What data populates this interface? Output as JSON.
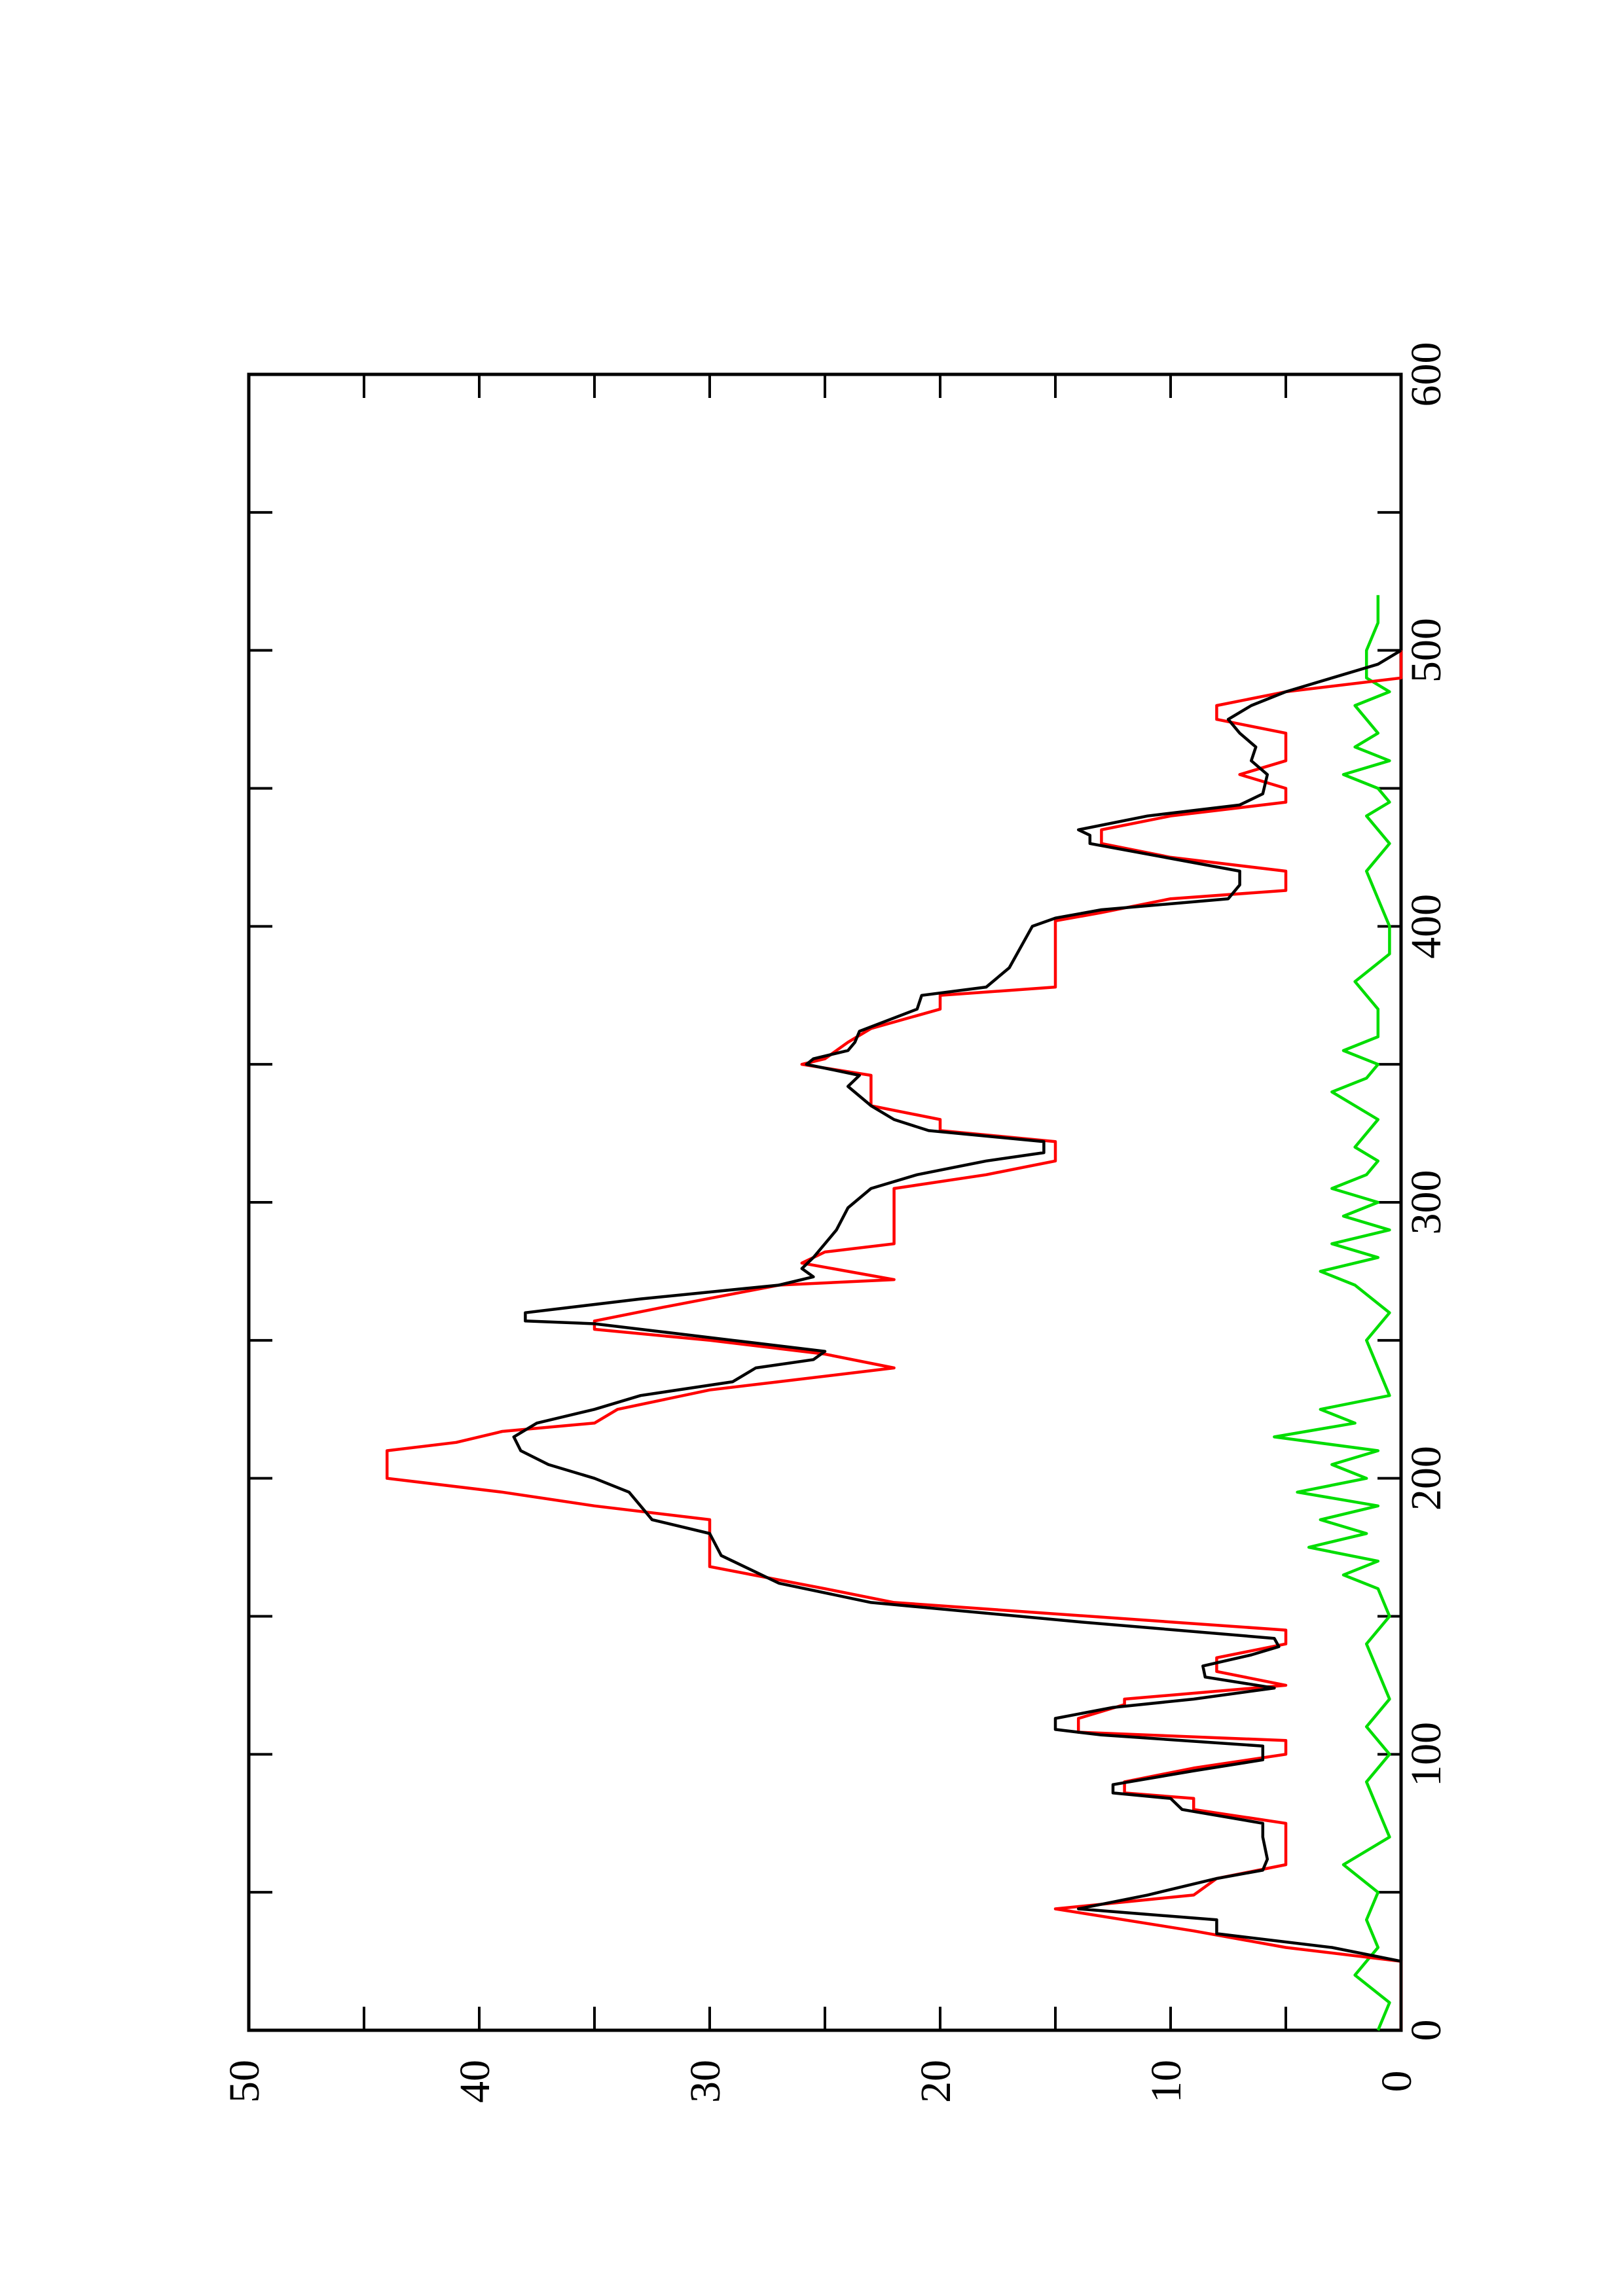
{
  "chart_data": {
    "type": "line",
    "orientation": "rotated 90deg counter-clockwise (x axis runs bottom-to-top along right edge)",
    "title": "",
    "xlabel": "",
    "ylabel": "",
    "xlim": [
      0,
      600
    ],
    "ylim": [
      0,
      50
    ],
    "x_ticks": [
      0,
      100,
      200,
      300,
      400,
      500,
      600
    ],
    "x_tick_labels": [
      "0",
      "100",
      "200",
      "300",
      "400",
      "500",
      "600"
    ],
    "y_ticks": [
      0,
      10,
      20,
      30,
      40,
      50
    ],
    "y_tick_labels": [
      "0",
      "10",
      "20",
      "30",
      "40",
      "50"
    ],
    "grid": false,
    "legend": "none",
    "series": [
      {
        "color": "#000000",
        "points": [
          [
            0,
            0
          ],
          [
            25,
            0
          ],
          [
            30,
            3
          ],
          [
            35,
            8
          ],
          [
            40,
            8
          ],
          [
            44,
            14
          ],
          [
            49,
            11
          ],
          [
            55,
            8
          ],
          [
            58,
            6
          ],
          [
            62,
            5.8
          ],
          [
            70,
            6
          ],
          [
            75,
            6
          ],
          [
            80,
            9.5
          ],
          [
            84,
            10
          ],
          [
            86,
            12.5
          ],
          [
            89,
            12.5
          ],
          [
            94,
            9
          ],
          [
            98,
            6
          ],
          [
            103,
            6
          ],
          [
            107,
            13
          ],
          [
            109,
            15
          ],
          [
            113,
            15
          ],
          [
            117,
            12.5
          ],
          [
            120,
            9
          ],
          [
            124,
            5.5
          ],
          [
            128,
            8.5
          ],
          [
            132,
            8.6
          ],
          [
            136,
            6.5
          ],
          [
            139,
            5.3
          ],
          [
            142,
            5.5
          ],
          [
            148,
            14
          ],
          [
            155,
            23
          ],
          [
            162,
            27
          ],
          [
            172,
            29.5
          ],
          [
            180,
            30
          ],
          [
            185,
            32.5
          ],
          [
            190,
            33
          ],
          [
            195,
            33.5
          ],
          [
            200,
            35
          ],
          [
            205,
            37
          ],
          [
            210,
            38.2
          ],
          [
            215,
            38.5
          ],
          [
            220,
            37.5
          ],
          [
            225,
            35
          ],
          [
            230,
            33
          ],
          [
            235,
            29
          ],
          [
            240,
            28
          ],
          [
            243,
            25.5
          ],
          [
            246,
            25
          ],
          [
            250,
            29
          ],
          [
            256,
            35
          ],
          [
            257,
            38
          ],
          [
            260,
            38
          ],
          [
            265,
            33
          ],
          [
            270,
            27
          ],
          [
            273,
            25.5
          ],
          [
            276,
            26
          ],
          [
            280,
            25.5
          ],
          [
            285,
            25
          ],
          [
            290,
            24.5
          ],
          [
            298,
            24
          ],
          [
            305,
            23
          ],
          [
            310,
            21
          ],
          [
            315,
            18
          ],
          [
            318,
            15.5
          ],
          [
            322,
            15.5
          ],
          [
            326,
            20.5
          ],
          [
            330,
            22
          ],
          [
            335,
            23
          ],
          [
            342,
            24
          ],
          [
            346,
            23.5
          ],
          [
            350,
            25.8
          ],
          [
            352,
            25.5
          ],
          [
            355,
            24
          ],
          [
            358,
            23.7
          ],
          [
            362,
            23.5
          ],
          [
            370,
            21
          ],
          [
            375,
            20.8
          ],
          [
            378,
            18
          ],
          [
            385,
            17
          ],
          [
            400,
            16
          ],
          [
            403,
            15
          ],
          [
            406,
            13
          ],
          [
            410,
            7.5
          ],
          [
            415,
            7
          ],
          [
            420,
            7
          ],
          [
            430,
            13.5
          ],
          [
            433,
            13.5
          ],
          [
            435,
            14
          ],
          [
            440,
            11
          ],
          [
            444,
            7
          ],
          [
            448,
            6
          ],
          [
            455,
            5.8
          ],
          [
            460,
            6.5
          ],
          [
            465,
            6.3
          ],
          [
            470,
            7
          ],
          [
            475,
            7.5
          ],
          [
            480,
            6.5
          ],
          [
            485,
            5
          ],
          [
            490,
            3
          ],
          [
            495,
            1
          ],
          [
            500,
            0
          ]
        ]
      },
      {
        "color": "#ff0000",
        "points": [
          [
            0,
            0
          ],
          [
            25,
            0
          ],
          [
            30,
            5
          ],
          [
            36,
            9
          ],
          [
            44,
            15
          ],
          [
            49,
            9
          ],
          [
            55,
            8
          ],
          [
            60,
            5
          ],
          [
            75,
            5
          ],
          [
            80,
            9
          ],
          [
            84,
            9
          ],
          [
            86,
            12
          ],
          [
            90,
            12
          ],
          [
            95,
            9
          ],
          [
            100,
            5
          ],
          [
            105,
            5
          ],
          [
            108,
            14
          ],
          [
            113,
            14
          ],
          [
            118,
            12
          ],
          [
            120,
            12
          ],
          [
            125,
            5
          ],
          [
            130,
            8
          ],
          [
            135,
            8
          ],
          [
            140,
            5
          ],
          [
            145,
            5
          ],
          [
            155,
            22
          ],
          [
            160,
            25
          ],
          [
            168,
            30
          ],
          [
            185,
            30
          ],
          [
            190,
            35
          ],
          [
            195,
            39
          ],
          [
            200,
            44
          ],
          [
            210,
            44
          ],
          [
            213,
            41
          ],
          [
            217,
            39
          ],
          [
            220,
            35
          ],
          [
            225,
            34
          ],
          [
            232,
            30
          ],
          [
            235,
            27
          ],
          [
            240,
            22
          ],
          [
            245,
            25
          ],
          [
            250,
            30
          ],
          [
            254,
            35
          ],
          [
            257,
            35
          ],
          [
            262,
            32
          ],
          [
            270,
            27
          ],
          [
            272,
            22
          ],
          [
            278,
            26
          ],
          [
            282,
            25
          ],
          [
            285,
            22
          ],
          [
            305,
            22
          ],
          [
            310,
            18
          ],
          [
            315,
            15
          ],
          [
            322,
            15
          ],
          [
            326,
            20
          ],
          [
            330,
            20
          ],
          [
            335,
            23
          ],
          [
            342,
            23
          ],
          [
            346,
            23
          ],
          [
            350,
            26
          ],
          [
            352,
            25
          ],
          [
            358,
            24
          ],
          [
            363,
            23
          ],
          [
            370,
            20
          ],
          [
            375,
            20
          ],
          [
            378,
            15
          ],
          [
            402,
            15
          ],
          [
            405,
            13
          ],
          [
            410,
            10
          ],
          [
            413,
            5
          ],
          [
            420,
            5
          ],
          [
            425,
            10
          ],
          [
            430,
            13
          ],
          [
            435,
            13
          ],
          [
            440,
            10
          ],
          [
            445,
            5
          ],
          [
            450,
            5
          ],
          [
            455,
            7
          ],
          [
            460,
            5
          ],
          [
            470,
            5
          ],
          [
            475,
            8
          ],
          [
            480,
            8
          ],
          [
            485,
            5
          ],
          [
            490,
            0
          ],
          [
            500,
            0
          ]
        ]
      },
      {
        "color": "#00dd00",
        "points": [
          [
            0,
            1
          ],
          [
            10,
            0.5
          ],
          [
            20,
            2
          ],
          [
            30,
            1
          ],
          [
            40,
            1.5
          ],
          [
            50,
            1
          ],
          [
            60,
            2.5
          ],
          [
            70,
            0.5
          ],
          [
            80,
            1
          ],
          [
            90,
            1.5
          ],
          [
            100,
            0.5
          ],
          [
            110,
            1.5
          ],
          [
            120,
            0.5
          ],
          [
            130,
            1
          ],
          [
            140,
            1.5
          ],
          [
            150,
            0.5
          ],
          [
            160,
            1
          ],
          [
            165,
            2.5
          ],
          [
            170,
            1
          ],
          [
            175,
            4
          ],
          [
            180,
            1.5
          ],
          [
            185,
            3.5
          ],
          [
            190,
            1
          ],
          [
            195,
            4.5
          ],
          [
            200,
            1.5
          ],
          [
            205,
            3
          ],
          [
            210,
            1
          ],
          [
            215,
            5.5
          ],
          [
            220,
            2
          ],
          [
            225,
            3.5
          ],
          [
            230,
            0.5
          ],
          [
            240,
            1
          ],
          [
            250,
            1.5
          ],
          [
            260,
            0.5
          ],
          [
            270,
            2
          ],
          [
            275,
            3.5
          ],
          [
            280,
            1
          ],
          [
            285,
            3
          ],
          [
            290,
            0.5
          ],
          [
            295,
            2.5
          ],
          [
            300,
            1
          ],
          [
            305,
            3
          ],
          [
            310,
            1.5
          ],
          [
            315,
            1
          ],
          [
            320,
            2
          ],
          [
            330,
            1
          ],
          [
            340,
            3
          ],
          [
            345,
            1.5
          ],
          [
            350,
            1
          ],
          [
            355,
            2.5
          ],
          [
            360,
            1
          ],
          [
            370,
            1
          ],
          [
            380,
            2
          ],
          [
            390,
            0.5
          ],
          [
            400,
            0.5
          ],
          [
            410,
            1
          ],
          [
            420,
            1.5
          ],
          [
            430,
            0.5
          ],
          [
            440,
            1.5
          ],
          [
            445,
            0.5
          ],
          [
            450,
            1
          ],
          [
            455,
            2.5
          ],
          [
            460,
            0.5
          ],
          [
            465,
            2
          ],
          [
            470,
            1
          ],
          [
            475,
            1.5
          ],
          [
            480,
            2
          ],
          [
            485,
            0.5
          ],
          [
            490,
            1.5
          ],
          [
            500,
            1.5
          ],
          [
            510,
            1
          ],
          [
            520,
            1
          ]
        ]
      }
    ]
  }
}
